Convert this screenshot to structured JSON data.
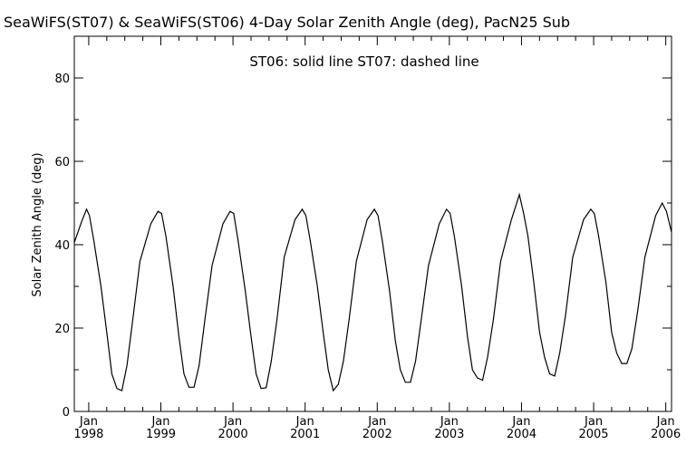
{
  "chart_data": {
    "type": "line",
    "title": "SeaWiFS(ST07) & SeaWiFS(ST06) 4-Day Solar Zenith Angle (deg), PacN25 Sub",
    "annotation": "ST06: solid line    ST07: dashed line",
    "ylabel": "Solar Zenith Angle (deg)",
    "xlabel": "",
    "xlim": [
      1997.8,
      2006.08
    ],
    "ylim": [
      0,
      90
    ],
    "yticks": [
      0,
      20,
      40,
      60,
      80
    ],
    "ytick_labels": [
      "0",
      "20",
      "40",
      "60",
      "80"
    ],
    "xticks": [
      {
        "x": 1998,
        "month": "Jan",
        "year": "1998"
      },
      {
        "x": 1999,
        "month": "Jan",
        "year": "1999"
      },
      {
        "x": 2000,
        "month": "Jan",
        "year": "2000"
      },
      {
        "x": 2001,
        "month": "Jan",
        "year": "2001"
      },
      {
        "x": 2002,
        "month": "Jan",
        "year": "2002"
      },
      {
        "x": 2003,
        "month": "Jan",
        "year": "2003"
      },
      {
        "x": 2004,
        "month": "Jan",
        "year": "2004"
      },
      {
        "x": 2005,
        "month": "Jan",
        "year": "2005"
      },
      {
        "x": 2006,
        "month": "Jan",
        "year": "2006"
      }
    ],
    "grid": false,
    "series": [
      {
        "name": "ST06",
        "style": "solid",
        "color": "#000000",
        "points": [
          [
            1997.8,
            40.5
          ],
          [
            1997.9,
            45.5
          ],
          [
            1997.97,
            48.5
          ],
          [
            1998.01,
            47.0
          ],
          [
            1998.07,
            41.0
          ],
          [
            1998.17,
            30.0
          ],
          [
            1998.25,
            19.0
          ],
          [
            1998.32,
            9.0
          ],
          [
            1998.39,
            5.5
          ],
          [
            1998.46,
            5.0
          ],
          [
            1998.53,
            11.0
          ],
          [
            1998.61,
            22.0
          ],
          [
            1998.71,
            36.0
          ],
          [
            1998.86,
            45.0
          ],
          [
            1998.96,
            48.0
          ],
          [
            1999.01,
            47.5
          ],
          [
            1999.07,
            42.0
          ],
          [
            1999.17,
            30.0
          ],
          [
            1999.25,
            18.0
          ],
          [
            1999.32,
            9.0
          ],
          [
            1999.39,
            5.8
          ],
          [
            1999.46,
            5.8
          ],
          [
            1999.53,
            11.0
          ],
          [
            1999.61,
            22.0
          ],
          [
            1999.71,
            35.0
          ],
          [
            1999.86,
            45.0
          ],
          [
            1999.96,
            48.0
          ],
          [
            2000.01,
            47.5
          ],
          [
            2000.07,
            41.0
          ],
          [
            2000.17,
            29.0
          ],
          [
            2000.25,
            18.0
          ],
          [
            2000.32,
            9.0
          ],
          [
            2000.39,
            5.5
          ],
          [
            2000.46,
            5.7
          ],
          [
            2000.53,
            12.0
          ],
          [
            2000.61,
            22.0
          ],
          [
            2000.71,
            37.0
          ],
          [
            2000.86,
            46.0
          ],
          [
            2000.96,
            48.5
          ],
          [
            2001.01,
            47.0
          ],
          [
            2001.07,
            41.0
          ],
          [
            2001.17,
            30.0
          ],
          [
            2001.25,
            19.0
          ],
          [
            2001.32,
            10.0
          ],
          [
            2001.39,
            5.0
          ],
          [
            2001.46,
            6.5
          ],
          [
            2001.53,
            12.0
          ],
          [
            2001.61,
            22.0
          ],
          [
            2001.71,
            36.0
          ],
          [
            2001.86,
            46.0
          ],
          [
            2001.96,
            48.5
          ],
          [
            2002.01,
            47.0
          ],
          [
            2002.07,
            41.0
          ],
          [
            2002.17,
            29.0
          ],
          [
            2002.25,
            17.0
          ],
          [
            2002.32,
            10.0
          ],
          [
            2002.39,
            7.0
          ],
          [
            2002.46,
            7.0
          ],
          [
            2002.53,
            12.0
          ],
          [
            2002.61,
            22.0
          ],
          [
            2002.71,
            35.0
          ],
          [
            2002.86,
            45.0
          ],
          [
            2002.96,
            48.5
          ],
          [
            2003.01,
            47.5
          ],
          [
            2003.07,
            42.0
          ],
          [
            2003.17,
            30.0
          ],
          [
            2003.25,
            18.0
          ],
          [
            2003.32,
            10.0
          ],
          [
            2003.39,
            8.0
          ],
          [
            2003.46,
            7.5
          ],
          [
            2003.53,
            13.0
          ],
          [
            2003.61,
            22.0
          ],
          [
            2003.71,
            36.0
          ],
          [
            2003.86,
            46.0
          ],
          [
            2003.97,
            52.0
          ],
          [
            2004.03,
            47.5
          ],
          [
            2004.09,
            42.0
          ],
          [
            2004.17,
            31.0
          ],
          [
            2004.25,
            19.0
          ],
          [
            2004.32,
            13.0
          ],
          [
            2004.39,
            9.0
          ],
          [
            2004.46,
            8.5
          ],
          [
            2004.53,
            14.0
          ],
          [
            2004.61,
            23.0
          ],
          [
            2004.71,
            37.0
          ],
          [
            2004.86,
            46.0
          ],
          [
            2004.96,
            48.5
          ],
          [
            2005.01,
            47.5
          ],
          [
            2005.07,
            42.0
          ],
          [
            2005.17,
            31.0
          ],
          [
            2005.25,
            19.0
          ],
          [
            2005.32,
            14.0
          ],
          [
            2005.39,
            11.5
          ],
          [
            2005.46,
            11.5
          ],
          [
            2005.53,
            15.0
          ],
          [
            2005.61,
            24.0
          ],
          [
            2005.71,
            37.0
          ],
          [
            2005.86,
            47.0
          ],
          [
            2005.95,
            50.0
          ],
          [
            2006.01,
            48.0
          ],
          [
            2006.08,
            43.0
          ]
        ]
      }
    ]
  }
}
